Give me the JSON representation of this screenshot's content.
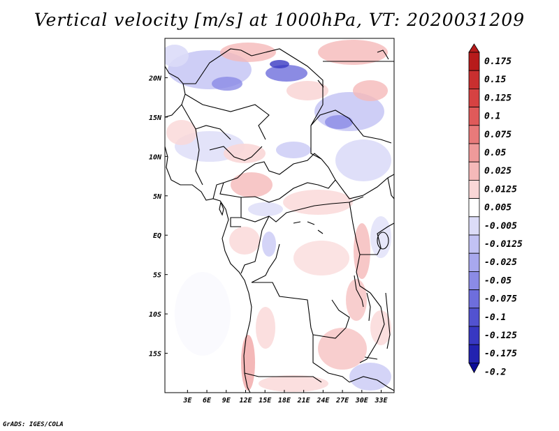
{
  "title": "Vertical velocity [m/s] at 1000hPa, VT: 2020031209",
  "credit": "GrADS: IGES/COLA",
  "map": {
    "lon_range": [
      -0.5,
      35.0
    ],
    "lat_range": [
      -20.0,
      25.0
    ],
    "x_ticks": [
      "3E",
      "6E",
      "9E",
      "12E",
      "15E",
      "18E",
      "21E",
      "24E",
      "27E",
      "30E",
      "33E"
    ],
    "x_tick_values": [
      3,
      6,
      9,
      12,
      15,
      18,
      21,
      24,
      27,
      30,
      33
    ],
    "y_ticks": [
      "20N",
      "15N",
      "10N",
      "5N",
      "EQ",
      "5S",
      "10S",
      "15S"
    ],
    "y_tick_values": [
      20,
      15,
      10,
      5,
      0,
      -5,
      -10,
      -15
    ],
    "line_color": "#000000"
  },
  "colorbar": {
    "labels": [
      "0.175",
      "0.15",
      "0.125",
      "0.1",
      "0.075",
      "0.05",
      "0.025",
      "0.0125",
      "0.005",
      "-0.005",
      "-0.0125",
      "-0.025",
      "-0.05",
      "-0.075",
      "-0.1",
      "-0.125",
      "-0.175",
      "-0.2"
    ],
    "colors": [
      "#b71b1b",
      "#c92f2f",
      "#d64242",
      "#df5a5a",
      "#e87a7a",
      "#ef9a9a",
      "#f5b9b9",
      "#fad7d7",
      "#ffffff",
      "#dcdcf8",
      "#c2c2f4",
      "#a8a8ee",
      "#8b8be6",
      "#6e6edc",
      "#5252d0",
      "#3838c2",
      "#2222b0",
      "#0c0c96"
    ]
  }
}
